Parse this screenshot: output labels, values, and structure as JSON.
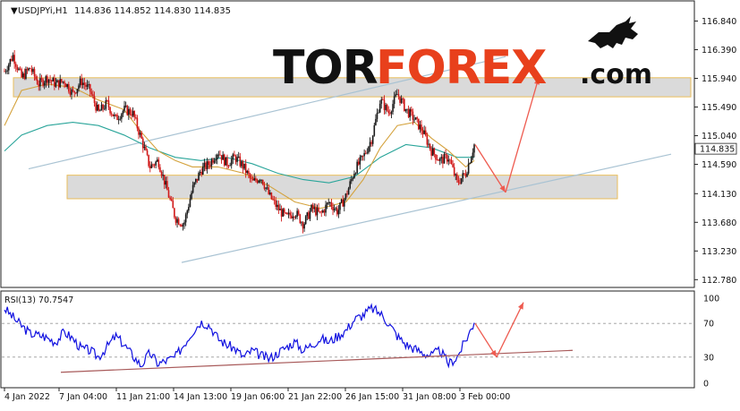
{
  "header": {
    "symbol": "USDJPYi,H1",
    "ohlc": "114.836 114.852 114.830 114.835"
  },
  "logo": {
    "part1": "TOR",
    "part2": "FOREX",
    "part3": ".com",
    "colors": {
      "tor": "#111111",
      "forex": "#e8401c",
      "dotcom": "#111111"
    }
  },
  "price_axis": {
    "ticks": [
      "116.840",
      "116.390",
      "115.940",
      "115.490",
      "115.040",
      "114.590",
      "114.130",
      "113.680",
      "113.230",
      "112.780"
    ],
    "current_price": "114.835"
  },
  "rsi_panel": {
    "label": "RSI(13) 70.7547",
    "ticks": [
      "100",
      "70",
      "30",
      "0"
    ]
  },
  "time_axis": {
    "labels": [
      "4 Jan 2022",
      "7 Jan 04:00",
      "11 Jan 21:00",
      "14 Jan 13:00",
      "19 Jan 06:00",
      "21 Jan 22:00",
      "26 Jan 15:00",
      "31 Jan 08:00",
      "3 Feb 00:00"
    ]
  },
  "colors": {
    "bull": "#1a1a1a",
    "bear": "#d01818",
    "ma_fast": "#d4a23c",
    "ma_slow": "#2aa59a",
    "rsi": "#1010e0",
    "zone_fill": "#d6d6d6",
    "zone_border": "#e8b84a",
    "channel": "#a9c3d3",
    "arrow": "#ee5b50",
    "rsi_trend": "#a85a5a"
  },
  "chart_data": [
    {
      "type": "candlestick",
      "title": "USDJPYi,H1",
      "ylim": [
        112.7,
        117.1
      ],
      "x": [
        "4 Jan 2022",
        "7 Jan 04:00",
        "11 Jan 21:00",
        "14 Jan 13:00",
        "19 Jan 06:00",
        "21 Jan 22:00",
        "26 Jan 15:00",
        "31 Jan 08:00",
        "3 Feb 00:00"
      ],
      "price_path": [
        [
          0,
          116.05
        ],
        [
          2,
          116.3
        ],
        [
          4,
          115.95
        ],
        [
          6,
          116.1
        ],
        [
          8,
          115.85
        ],
        [
          10,
          115.95
        ],
        [
          12,
          115.85
        ],
        [
          14,
          115.9
        ],
        [
          16,
          115.7
        ],
        [
          18,
          115.9
        ],
        [
          20,
          115.75
        ],
        [
          22,
          115.4
        ],
        [
          24,
          115.55
        ],
        [
          26,
          115.3
        ],
        [
          28,
          115.45
        ],
        [
          30,
          115.4
        ],
        [
          32,
          115.0
        ],
        [
          34,
          114.55
        ],
        [
          36,
          114.65
        ],
        [
          38,
          114.2
        ],
        [
          40,
          113.75
        ],
        [
          42,
          113.65
        ],
        [
          44,
          114.2
        ],
        [
          46,
          114.5
        ],
        [
          48,
          114.6
        ],
        [
          50,
          114.8
        ],
        [
          52,
          114.6
        ],
        [
          54,
          114.7
        ],
        [
          56,
          114.55
        ],
        [
          58,
          114.3
        ],
        [
          60,
          114.4
        ],
        [
          62,
          114.1
        ],
        [
          64,
          113.9
        ],
        [
          66,
          113.75
        ],
        [
          68,
          113.85
        ],
        [
          70,
          113.65
        ],
        [
          72,
          113.9
        ],
        [
          74,
          113.8
        ],
        [
          76,
          114.0
        ],
        [
          78,
          113.85
        ],
        [
          80,
          114.1
        ],
        [
          82,
          114.5
        ],
        [
          84,
          114.7
        ],
        [
          86,
          115.0
        ],
        [
          88,
          115.6
        ],
        [
          90,
          115.4
        ],
        [
          92,
          115.7
        ],
        [
          94,
          115.45
        ],
        [
          96,
          115.3
        ],
        [
          98,
          115.1
        ],
        [
          100,
          114.8
        ],
        [
          102,
          114.65
        ],
        [
          104,
          114.7
        ],
        [
          106,
          114.3
        ],
        [
          108,
          114.45
        ],
        [
          110,
          114.9
        ]
      ],
      "ma_fast": [
        [
          0,
          115.2
        ],
        [
          4,
          115.75
        ],
        [
          10,
          115.85
        ],
        [
          16,
          115.8
        ],
        [
          22,
          115.6
        ],
        [
          28,
          115.45
        ],
        [
          32,
          115.1
        ],
        [
          36,
          114.8
        ],
        [
          40,
          114.65
        ],
        [
          44,
          114.55
        ],
        [
          50,
          114.55
        ],
        [
          56,
          114.45
        ],
        [
          62,
          114.25
        ],
        [
          68,
          114.0
        ],
        [
          74,
          113.9
        ],
        [
          80,
          114.0
        ],
        [
          84,
          114.35
        ],
        [
          88,
          114.85
        ],
        [
          92,
          115.2
        ],
        [
          96,
          115.25
        ],
        [
          100,
          115.0
        ],
        [
          104,
          114.8
        ],
        [
          108,
          114.55
        ],
        [
          110,
          114.65
        ]
      ],
      "ma_slow": [
        [
          0,
          114.8
        ],
        [
          4,
          115.05
        ],
        [
          10,
          115.2
        ],
        [
          16,
          115.25
        ],
        [
          22,
          115.2
        ],
        [
          28,
          115.05
        ],
        [
          34,
          114.85
        ],
        [
          40,
          114.7
        ],
        [
          46,
          114.65
        ],
        [
          52,
          114.7
        ],
        [
          58,
          114.6
        ],
        [
          64,
          114.45
        ],
        [
          70,
          114.35
        ],
        [
          76,
          114.3
        ],
        [
          82,
          114.4
        ],
        [
          88,
          114.7
        ],
        [
          94,
          114.9
        ],
        [
          100,
          114.85
        ],
        [
          106,
          114.7
        ],
        [
          110,
          114.7
        ]
      ]
    },
    {
      "type": "line",
      "title": "RSI(13) 70.7547",
      "ylim": [
        0,
        100
      ],
      "x": [
        "4 Jan 2022",
        "7 Jan 04:00",
        "11 Jan 21:00",
        "14 Jan 13:00",
        "19 Jan 06:00",
        "21 Jan 22:00",
        "26 Jan 15:00",
        "31 Jan 08:00",
        "3 Feb 00:00"
      ],
      "series": [
        {
          "values": [
            [
              0,
              88
            ],
            [
              3,
              72
            ],
            [
              6,
              58
            ],
            [
              9,
              55
            ],
            [
              12,
              48
            ],
            [
              14,
              60
            ],
            [
              16,
              52
            ],
            [
              18,
              40
            ],
            [
              20,
              38
            ],
            [
              22,
              30
            ],
            [
              24,
              42
            ],
            [
              26,
              55
            ],
            [
              28,
              45
            ],
            [
              30,
              32
            ],
            [
              32,
              20
            ],
            [
              34,
              35
            ],
            [
              36,
              22
            ],
            [
              38,
              26
            ],
            [
              40,
              30
            ],
            [
              42,
              45
            ],
            [
              44,
              60
            ],
            [
              46,
              72
            ],
            [
              48,
              68
            ],
            [
              50,
              52
            ],
            [
              52,
              45
            ],
            [
              54,
              40
            ],
            [
              56,
              30
            ],
            [
              58,
              38
            ],
            [
              60,
              32
            ],
            [
              62,
              28
            ],
            [
              64,
              35
            ],
            [
              66,
              42
            ],
            [
              68,
              48
            ],
            [
              70,
              38
            ],
            [
              72,
              45
            ],
            [
              74,
              52
            ],
            [
              76,
              48
            ],
            [
              78,
              55
            ],
            [
              80,
              62
            ],
            [
              82,
              75
            ],
            [
              84,
              80
            ],
            [
              86,
              88
            ],
            [
              88,
              82
            ],
            [
              90,
              70
            ],
            [
              92,
              55
            ],
            [
              94,
              45
            ],
            [
              96,
              40
            ],
            [
              98,
              35
            ],
            [
              100,
              32
            ],
            [
              102,
              38
            ],
            [
              104,
              22
            ],
            [
              106,
              30
            ],
            [
              108,
              50
            ],
            [
              110,
              70.7547
            ]
          ]
        }
      ],
      "levels": [
        70,
        30
      ]
    }
  ]
}
